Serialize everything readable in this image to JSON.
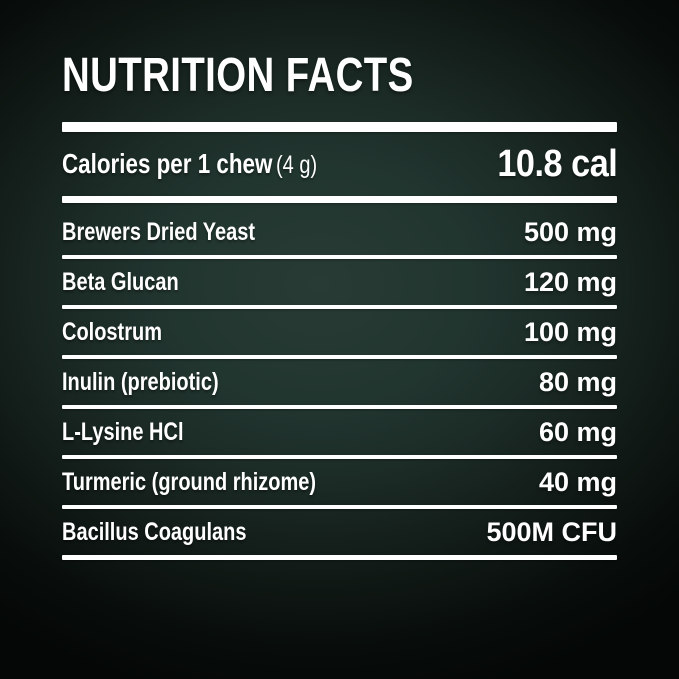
{
  "title": "NUTRITION FACTS",
  "calories": {
    "label": "Calories per 1 chew",
    "serving": "(4 g)",
    "value": "10.8 cal"
  },
  "rows": [
    {
      "name": "Brewers Dried Yeast",
      "value": "500 mg"
    },
    {
      "name": "Beta Glucan",
      "value": "120 mg"
    },
    {
      "name": "Colostrum",
      "value": "100 mg"
    },
    {
      "name": "Inulin (prebiotic)",
      "value": "80 mg"
    },
    {
      "name": "L-Lysine HCl",
      "value": "60 mg"
    },
    {
      "name": "Turmeric (ground rhizome)",
      "value": "40 mg"
    },
    {
      "name": "Bacillus Coagulans",
      "value": "500M CFU"
    }
  ],
  "colors": {
    "background_center": "#223630",
    "background_edge": "#050807",
    "text": "#ffffff",
    "rule": "#ffffff"
  }
}
